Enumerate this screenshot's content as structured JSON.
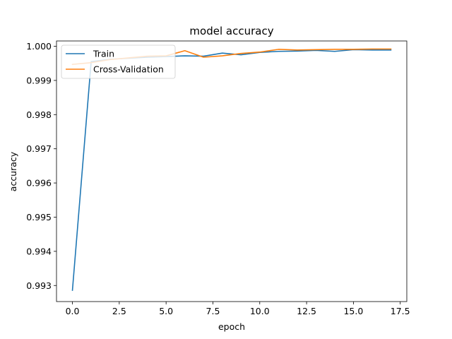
{
  "chart_data": {
    "type": "line",
    "title": "model accuracy",
    "xlabel": "epoch",
    "ylabel": "accuracy",
    "xlim": [
      -0.85,
      17.85
    ],
    "ylim": [
      0.99253,
      1.000155
    ],
    "xticks": [
      0.0,
      2.5,
      5.0,
      7.5,
      10.0,
      12.5,
      15.0,
      17.5
    ],
    "xtick_labels": [
      "0.0",
      "2.5",
      "5.0",
      "7.5",
      "10.0",
      "12.5",
      "15.0",
      "17.5"
    ],
    "yticks": [
      0.993,
      0.994,
      0.995,
      0.996,
      0.997,
      0.998,
      0.999,
      1.0
    ],
    "ytick_labels": [
      "0.993",
      "0.994",
      "0.995",
      "0.996",
      "0.997",
      "0.998",
      "0.999",
      "1.000"
    ],
    "grid": false,
    "legend_position": "top-left",
    "x": [
      0,
      1,
      2,
      3,
      4,
      5,
      6,
      7,
      8,
      9,
      10,
      11,
      12,
      13,
      14,
      15,
      16,
      17
    ],
    "series": [
      {
        "name": "Train",
        "color": "#1f77b4",
        "values": [
          0.99286,
          0.99955,
          0.99962,
          0.99965,
          0.99968,
          0.9997,
          0.99972,
          0.99971,
          0.9998,
          0.99975,
          0.99982,
          0.99985,
          0.99986,
          0.99988,
          0.99985,
          0.9999,
          0.99989,
          0.99989
        ]
      },
      {
        "name": "Cross-Validation",
        "color": "#ff7f0e",
        "values": [
          0.99947,
          0.99952,
          0.99961,
          0.99966,
          0.99971,
          0.99972,
          0.99987,
          0.99968,
          0.99972,
          0.99979,
          0.99983,
          0.99991,
          0.99989,
          0.9999,
          0.99991,
          0.99991,
          0.99992,
          0.99992
        ]
      }
    ]
  }
}
